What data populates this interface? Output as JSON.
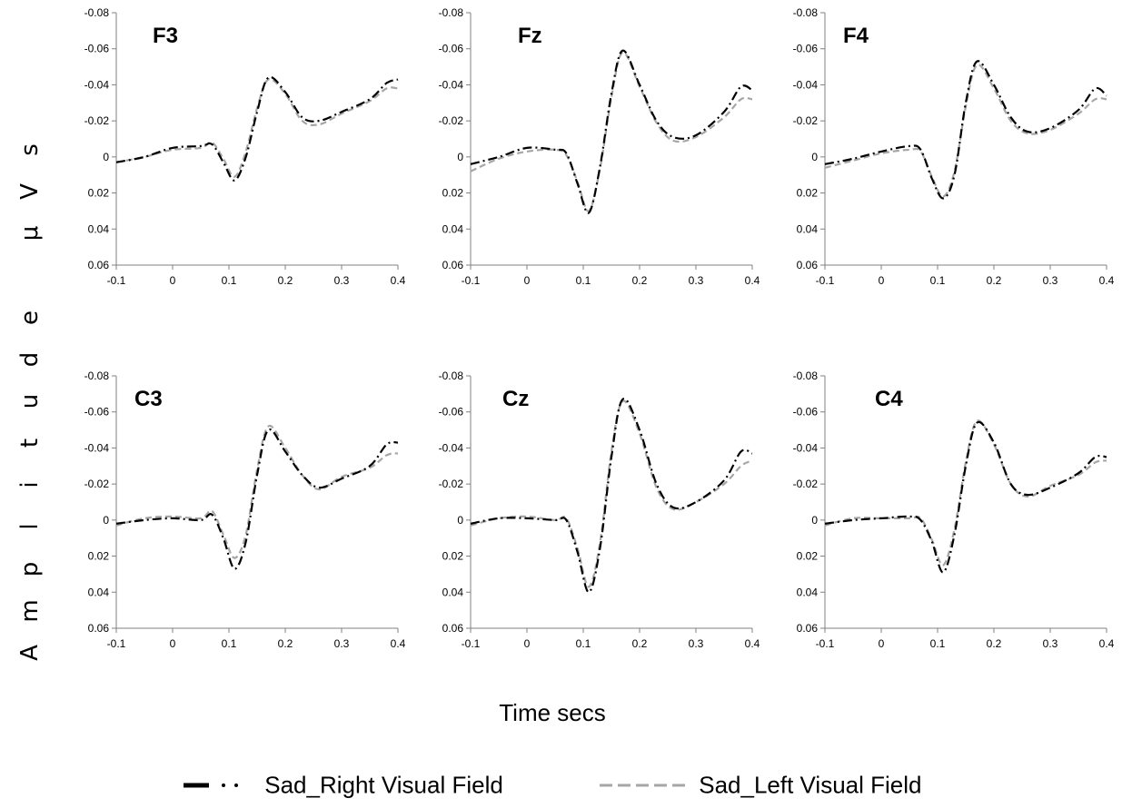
{
  "y_axis_label": "Amplitude μVs",
  "x_axis_label": "Time secs",
  "chart_data": {
    "type": "line",
    "xlabel": "Time secs",
    "ylabel": "Amplitude μVs",
    "xlim": [
      -0.1,
      0.4
    ],
    "ylim": [
      -0.08,
      0.06
    ],
    "y_axis_inverted": true,
    "x_ticks": [
      "-0.1",
      "0",
      "0.1",
      "0.2",
      "0.3",
      "0.4"
    ],
    "y_ticks": [
      "-0.08",
      "-0.06",
      "-0.04",
      "-0.02",
      "0",
      "0.02",
      "0.04",
      "0.06"
    ],
    "legend_placement": "bottom",
    "colors": {
      "right": "#000000",
      "left": "#a6a6a6"
    },
    "legend": [
      {
        "name": "Sad_Right Visual Field",
        "style": "dash-dot",
        "color": "#000000"
      },
      {
        "name": "Sad_Left Visual Field",
        "style": "dashed",
        "color": "#a6a6a6"
      }
    ],
    "panels": [
      {
        "title": "F3",
        "x": [
          -0.1,
          -0.05,
          0,
          0.05,
          0.07,
          0.09,
          0.11,
          0.13,
          0.15,
          0.17,
          0.2,
          0.23,
          0.26,
          0.3,
          0.35,
          0.38,
          0.4
        ],
        "series": [
          {
            "name": "Sad_Right Visual Field",
            "values": [
              0.003,
              0.0,
              -0.005,
              -0.006,
              -0.007,
              0.003,
              0.013,
              0.0,
              -0.025,
              -0.044,
              -0.036,
              -0.022,
              -0.02,
              -0.025,
              -0.032,
              -0.041,
              -0.043
            ]
          },
          {
            "name": "Sad_Left Visual Field",
            "values": [
              0.003,
              0.0,
              -0.004,
              -0.005,
              -0.008,
              0.001,
              0.011,
              -0.003,
              -0.027,
              -0.043,
              -0.035,
              -0.02,
              -0.018,
              -0.024,
              -0.031,
              -0.038,
              -0.038
            ]
          }
        ]
      },
      {
        "title": "Fz",
        "x": [
          -0.1,
          -0.05,
          0,
          0.05,
          0.07,
          0.09,
          0.11,
          0.13,
          0.15,
          0.17,
          0.2,
          0.23,
          0.26,
          0.3,
          0.35,
          0.38,
          0.4
        ],
        "series": [
          {
            "name": "Sad_Right Visual Field",
            "values": [
              0.004,
              0.0,
              -0.005,
              -0.004,
              -0.002,
              0.015,
              0.031,
              0.005,
              -0.035,
              -0.059,
              -0.04,
              -0.02,
              -0.011,
              -0.012,
              -0.025,
              -0.039,
              -0.037
            ]
          },
          {
            "name": "Sad_Left Visual Field",
            "values": [
              0.008,
              0.001,
              -0.003,
              -0.004,
              -0.001,
              0.014,
              0.03,
              0.006,
              -0.033,
              -0.058,
              -0.039,
              -0.019,
              -0.009,
              -0.011,
              -0.022,
              -0.032,
              -0.032
            ]
          }
        ]
      },
      {
        "title": "F4",
        "x": [
          -0.1,
          -0.05,
          0,
          0.05,
          0.07,
          0.09,
          0.11,
          0.13,
          0.15,
          0.17,
          0.2,
          0.23,
          0.26,
          0.3,
          0.35,
          0.38,
          0.4
        ],
        "series": [
          {
            "name": "Sad_Right Visual Field",
            "values": [
              0.004,
              0.001,
              -0.003,
              -0.006,
              -0.004,
              0.012,
              0.023,
              0.01,
              -0.03,
              -0.053,
              -0.04,
              -0.022,
              -0.014,
              -0.016,
              -0.026,
              -0.038,
              -0.034
            ]
          },
          {
            "name": "Sad_Left Visual Field",
            "values": [
              0.006,
              0.002,
              -0.002,
              -0.004,
              -0.003,
              0.011,
              0.022,
              0.008,
              -0.028,
              -0.051,
              -0.038,
              -0.02,
              -0.013,
              -0.015,
              -0.024,
              -0.032,
              -0.032
            ]
          }
        ]
      },
      {
        "title": "C3",
        "x": [
          -0.1,
          -0.05,
          0,
          0.05,
          0.07,
          0.09,
          0.11,
          0.13,
          0.15,
          0.17,
          0.2,
          0.23,
          0.26,
          0.3,
          0.35,
          0.38,
          0.4
        ],
        "series": [
          {
            "name": "Sad_Right Visual Field",
            "values": [
              0.002,
              0.0,
              -0.001,
              0.0,
              -0.003,
              0.01,
              0.027,
              0.012,
              -0.025,
              -0.05,
              -0.038,
              -0.025,
              -0.018,
              -0.023,
              -0.03,
              -0.042,
              -0.043
            ]
          },
          {
            "name": "Sad_Left Visual Field",
            "values": [
              0.003,
              -0.001,
              -0.002,
              -0.001,
              -0.005,
              0.008,
              0.021,
              0.008,
              -0.028,
              -0.052,
              -0.04,
              -0.025,
              -0.017,
              -0.024,
              -0.029,
              -0.036,
              -0.037
            ]
          }
        ]
      },
      {
        "title": "Cz",
        "x": [
          -0.1,
          -0.05,
          0,
          0.05,
          0.07,
          0.09,
          0.11,
          0.13,
          0.15,
          0.17,
          0.2,
          0.23,
          0.26,
          0.3,
          0.35,
          0.38,
          0.4
        ],
        "series": [
          {
            "name": "Sad_Right Visual Field",
            "values": [
              0.002,
              -0.001,
              -0.001,
              0.0,
              0.0,
              0.018,
              0.04,
              0.015,
              -0.035,
              -0.067,
              -0.05,
              -0.02,
              -0.007,
              -0.01,
              -0.022,
              -0.038,
              -0.037
            ]
          },
          {
            "name": "Sad_Left Visual Field",
            "values": [
              0.003,
              -0.001,
              -0.002,
              0.0,
              -0.001,
              0.016,
              0.037,
              0.012,
              -0.038,
              -0.066,
              -0.048,
              -0.018,
              -0.006,
              -0.01,
              -0.02,
              -0.03,
              -0.033
            ]
          }
        ]
      },
      {
        "title": "C4",
        "x": [
          -0.1,
          -0.05,
          0,
          0.05,
          0.07,
          0.09,
          0.11,
          0.13,
          0.15,
          0.17,
          0.2,
          0.23,
          0.26,
          0.3,
          0.35,
          0.38,
          0.4
        ],
        "series": [
          {
            "name": "Sad_Right Visual Field",
            "values": [
              0.002,
              0.0,
              -0.001,
              -0.002,
              0.0,
              0.012,
              0.029,
              0.008,
              -0.03,
              -0.054,
              -0.043,
              -0.02,
              -0.014,
              -0.018,
              -0.026,
              -0.035,
              -0.035
            ]
          },
          {
            "name": "Sad_Left Visual Field",
            "values": [
              0.003,
              -0.001,
              -0.001,
              -0.001,
              -0.001,
              0.011,
              0.025,
              0.005,
              -0.032,
              -0.055,
              -0.042,
              -0.02,
              -0.013,
              -0.019,
              -0.025,
              -0.032,
              -0.033
            ]
          }
        ]
      }
    ]
  }
}
